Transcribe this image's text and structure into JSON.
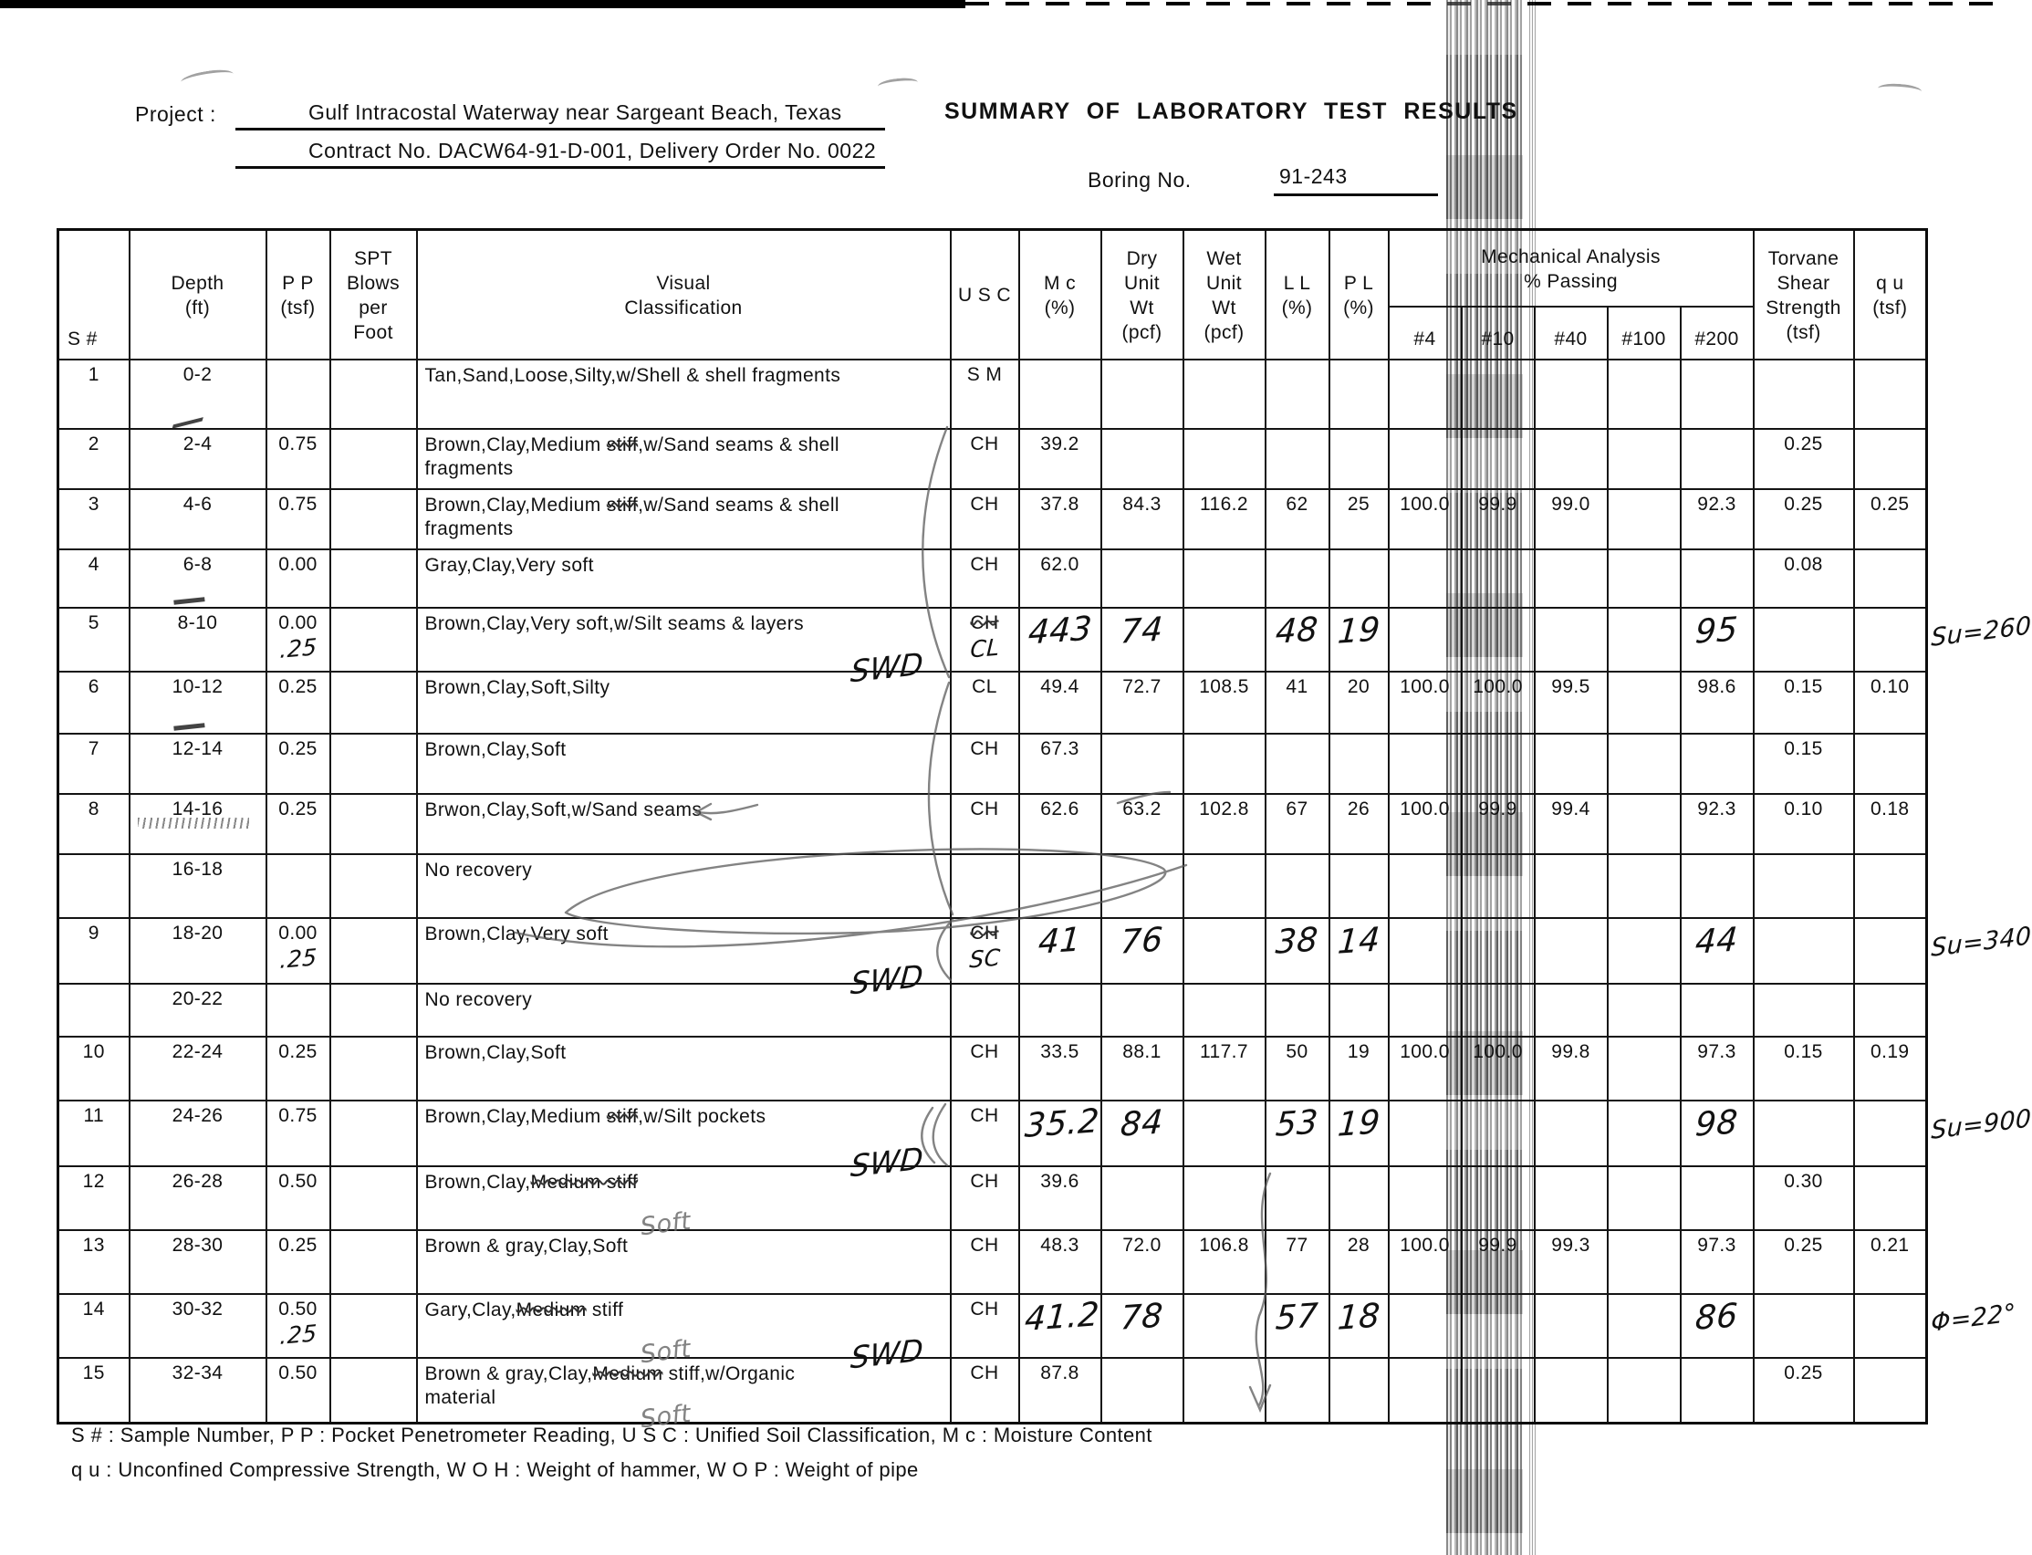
{
  "header": {
    "project_label": "Project :",
    "project_line1": "Gulf Intracostal Waterway near Sargeant Beach, Texas",
    "project_line2": "Contract No. DACW64-91-D-001, Delivery Order No. 0022",
    "title": "SUMMARY OF LABORATORY TEST RESULTS",
    "boring_label": "Boring No.",
    "boring_value": "91-243"
  },
  "table": {
    "headers": {
      "s": "S #",
      "depth_1": "Depth",
      "depth_2": "(ft)",
      "pp_1": "P P",
      "pp_2": "(tsf)",
      "spt_1": "SPT",
      "spt_2": "Blows",
      "spt_3": "per",
      "spt_4": "Foot",
      "visual_1": "Visual",
      "visual_2": "Classification",
      "usc": "U S C",
      "mc_1": "M c",
      "mc_2": "(%)",
      "dry_1": "Dry",
      "dry_2": "Unit",
      "dry_3": "Wt",
      "dry_4": "(pcf)",
      "wet_1": "Wet",
      "wet_2": "Unit",
      "wet_3": "Wt",
      "wet_4": "(pcf)",
      "ll_1": "L L",
      "ll_2": "(%)",
      "pl_1": "P L",
      "pl_2": "(%)",
      "mech_1": "Mechanical Analysis",
      "mech_2": "% Passing",
      "sieves": [
        "#4",
        "#10",
        "#40",
        "#100",
        "#200"
      ],
      "torvane_1": "Torvane",
      "torvane_2": "Shear",
      "torvane_3": "Strength",
      "torvane_4": "(tsf)",
      "qu_1": "q u",
      "qu_2": "(tsf)"
    },
    "rows": [
      {
        "s": "1",
        "depth": "0-2",
        "pp": "",
        "pp_hw": "",
        "spt": "",
        "visual": [
          [
            "Tan,Sand,Loose,Silty,w/Shell  &  shell  fragments",
            0
          ]
        ],
        "line2": "",
        "hw_note": "",
        "hw_note2": "",
        "usc": "S M",
        "usc_struck": false,
        "usc_hw": "",
        "mc": "",
        "dry": "",
        "wet": "",
        "ll": "",
        "pl": "",
        "p4": "",
        "p10": "",
        "p40": "",
        "p100": "",
        "p200": "",
        "torvane": "",
        "qu": "",
        "margin": "",
        "hand": false,
        "h": 76,
        "depth_mark": "arrow"
      },
      {
        "s": "2",
        "depth": "2-4",
        "pp": "0.75",
        "pp_hw": "",
        "spt": "",
        "visual": [
          [
            "Brown,Clay,Medium ",
            0
          ],
          [
            "stiff",
            1
          ],
          [
            ",w/Sand  seams  &  shell",
            0
          ]
        ],
        "line2": "fragments",
        "hw_note": "",
        "hw_note2": "",
        "usc": "CH",
        "usc_struck": false,
        "usc_hw": "",
        "mc": "39.2",
        "dry": "",
        "wet": "",
        "ll": "",
        "pl": "",
        "p4": "",
        "p10": "",
        "p40": "",
        "p100": "",
        "p200": "",
        "torvane": "0.25",
        "qu": "",
        "margin": "",
        "hand": false,
        "h": 66
      },
      {
        "s": "3",
        "depth": "4-6",
        "pp": "0.75",
        "pp_hw": "",
        "spt": "",
        "visual": [
          [
            "Brown,Clay,Medium ",
            0
          ],
          [
            "stiff",
            1
          ],
          [
            ",w/Sand  seams  &  shell",
            0
          ]
        ],
        "line2": "fragments",
        "hw_note": "",
        "hw_note2": "",
        "usc": "CH",
        "usc_struck": false,
        "usc_hw": "",
        "mc": "37.8",
        "dry": "84.3",
        "wet": "116.2",
        "ll": "62",
        "pl": "25",
        "p4": "100.0",
        "p10": "99.9",
        "p40": "99.0",
        "p100": "",
        "p200": "92.3",
        "torvane": "0.25",
        "qu": "0.25",
        "margin": "",
        "hand": false,
        "h": 66
      },
      {
        "s": "4",
        "depth": "6-8",
        "pp": "0.00",
        "pp_hw": "",
        "spt": "",
        "visual": [
          [
            "Gray,Clay,Very  soft",
            0
          ]
        ],
        "line2": "",
        "hw_note": "",
        "hw_note2": "",
        "usc": "CH",
        "usc_struck": false,
        "usc_hw": "",
        "mc": "62.0",
        "dry": "",
        "wet": "",
        "ll": "",
        "pl": "",
        "p4": "",
        "p10": "",
        "p40": "",
        "p100": "",
        "p200": "",
        "torvane": "0.08",
        "qu": "",
        "margin": "",
        "hand": false,
        "h": 64,
        "depth_mark": "dash"
      },
      {
        "s": "5",
        "depth": "8-10",
        "pp": "0.00",
        "pp_hw": ".25",
        "spt": "",
        "visual": [
          [
            "Brown,Clay,Very  soft,w/Silt  seams  &  layers",
            0
          ]
        ],
        "line2": "",
        "hw_note": "SWD",
        "hw_note2": "",
        "usc": "CH",
        "usc_struck": true,
        "usc_hw": "CL",
        "mc": "443",
        "dry": "74",
        "wet": "",
        "ll": "48",
        "pl": "19",
        "p4": "",
        "p10": "",
        "p40": "",
        "p100": "",
        "p200": "95",
        "torvane": "",
        "qu": "",
        "margin": "Su=260",
        "hand": true,
        "h": 70
      },
      {
        "s": "6",
        "depth": "10-12",
        "pp": "0.25",
        "pp_hw": "",
        "spt": "",
        "visual": [
          [
            "Brown,Clay,Soft,Silty",
            0
          ]
        ],
        "line2": "",
        "hw_note": "",
        "hw_note2": "",
        "usc": "CL",
        "usc_struck": false,
        "usc_hw": "",
        "mc": "49.4",
        "dry": "72.7",
        "wet": "108.5",
        "ll": "41",
        "pl": "20",
        "p4": "100.0",
        "p10": "100.0",
        "p40": "99.5",
        "p100": "",
        "p200": "98.6",
        "torvane": "0.15",
        "qu": "0.10",
        "margin": "",
        "hand": false,
        "h": 68,
        "depth_mark": "dash"
      },
      {
        "s": "7",
        "depth": "12-14",
        "pp": "0.25",
        "pp_hw": "",
        "spt": "",
        "visual": [
          [
            "Brown,Clay,Soft",
            0
          ]
        ],
        "line2": "",
        "hw_note": "",
        "hw_note2": "",
        "usc": "CH",
        "usc_struck": false,
        "usc_hw": "",
        "mc": "67.3",
        "dry": "",
        "wet": "",
        "ll": "",
        "pl": "",
        "p4": "",
        "p10": "",
        "p40": "",
        "p100": "",
        "p200": "",
        "torvane": "0.15",
        "qu": "",
        "margin": "",
        "hand": false,
        "h": 66
      },
      {
        "s": "8",
        "depth": "14-16",
        "pp": "0.25",
        "pp_hw": "",
        "spt": "",
        "visual": [
          [
            "Brwon,Clay,Soft,w/Sand  seams",
            0
          ]
        ],
        "line2": "",
        "hw_note": "",
        "hw_note2": "",
        "usc": "CH",
        "usc_struck": false,
        "usc_hw": "",
        "mc": "62.6",
        "dry": "63.2",
        "wet": "102.8",
        "ll": "67",
        "pl": "26",
        "p4": "100.0",
        "p10": "99.9",
        "p40": "99.4",
        "p100": "",
        "p200": "92.3",
        "torvane": "0.10",
        "qu": "0.18",
        "margin": "",
        "hand": false,
        "h": 66,
        "depth_mark": "scribble"
      },
      {
        "s": "",
        "depth": "16-18",
        "pp": "",
        "pp_hw": "",
        "spt": "",
        "visual": [
          [
            "No  recovery",
            0
          ]
        ],
        "line2": "",
        "hw_note": "",
        "hw_note2": "",
        "usc": "",
        "usc_struck": false,
        "usc_hw": "",
        "mc": "",
        "dry": "",
        "wet": "",
        "ll": "",
        "pl": "",
        "p4": "",
        "p10": "",
        "p40": "",
        "p100": "",
        "p200": "",
        "torvane": "",
        "qu": "",
        "margin": "",
        "hand": false,
        "h": 70
      },
      {
        "s": "9",
        "depth": "18-20",
        "pp": "0.00",
        "pp_hw": ".25",
        "spt": "",
        "visual": [
          [
            "Brown,Clay,Very  soft",
            0
          ]
        ],
        "line2": "",
        "hw_note": "SWD",
        "hw_note2": "",
        "usc": "CH",
        "usc_struck": true,
        "usc_hw": "SC",
        "mc": "41",
        "dry": "76",
        "wet": "",
        "ll": "38",
        "pl": "14",
        "p4": "",
        "p10": "",
        "p40": "",
        "p100": "",
        "p200": "44",
        "torvane": "",
        "qu": "",
        "margin": "Su=340",
        "hand": true,
        "h": 72
      },
      {
        "s": "",
        "depth": "20-22",
        "pp": "",
        "pp_hw": "",
        "spt": "",
        "visual": [
          [
            "No  recovery",
            0
          ]
        ],
        "line2": "",
        "hw_note": "",
        "hw_note2": "",
        "usc": "",
        "usc_struck": false,
        "usc_hw": "",
        "mc": "",
        "dry": "",
        "wet": "",
        "ll": "",
        "pl": "",
        "p4": "",
        "p10": "",
        "p40": "",
        "p100": "",
        "p200": "",
        "torvane": "",
        "qu": "",
        "margin": "",
        "hand": false,
        "h": 58
      },
      {
        "s": "10",
        "depth": "22-24",
        "pp": "0.25",
        "pp_hw": "",
        "spt": "",
        "visual": [
          [
            "Brown,Clay,Soft",
            0
          ]
        ],
        "line2": "",
        "hw_note": "",
        "hw_note2": "",
        "usc": "CH",
        "usc_struck": false,
        "usc_hw": "",
        "mc": "33.5",
        "dry": "88.1",
        "wet": "117.7",
        "ll": "50",
        "pl": "19",
        "p4": "100.0",
        "p10": "100.0",
        "p40": "99.8",
        "p100": "",
        "p200": "97.3",
        "torvane": "0.15",
        "qu": "0.19",
        "margin": "",
        "hand": false,
        "h": 70
      },
      {
        "s": "11",
        "depth": "24-26",
        "pp": "0.75",
        "pp_hw": "",
        "spt": "",
        "visual": [
          [
            "Brown,Clay,Medium ",
            0
          ],
          [
            "stiff",
            1
          ],
          [
            ",w/Silt  pockets",
            0
          ]
        ],
        "line2": "",
        "hw_note": "SWD",
        "hw_note2": "",
        "usc": "CH",
        "usc_struck": false,
        "usc_hw": "",
        "mc": "35.2",
        "dry": "84",
        "wet": "",
        "ll": "53",
        "pl": "19",
        "p4": "",
        "p10": "",
        "p40": "",
        "p100": "",
        "p200": "98",
        "torvane": "",
        "qu": "",
        "margin": "Su=900",
        "hand": true,
        "h": 72
      },
      {
        "s": "12",
        "depth": "26-28",
        "pp": "0.50",
        "pp_hw": "",
        "spt": "",
        "visual": [
          [
            "Brown,Clay,",
            0
          ],
          [
            "Medium stiff",
            1
          ]
        ],
        "line2": "",
        "hw_note": "",
        "hw_note2": "Soft",
        "usc": "CH",
        "usc_struck": false,
        "usc_hw": "",
        "mc": "39.6",
        "dry": "",
        "wet": "",
        "ll": "",
        "pl": "",
        "p4": "",
        "p10": "",
        "p40": "",
        "p100": "",
        "p200": "",
        "torvane": "0.30",
        "qu": "",
        "margin": "",
        "hand": false,
        "h": 70
      },
      {
        "s": "13",
        "depth": "28-30",
        "pp": "0.25",
        "pp_hw": "",
        "spt": "",
        "visual": [
          [
            "Brown  &  gray,Clay,Soft",
            0
          ]
        ],
        "line2": "",
        "hw_note": "",
        "hw_note2": "",
        "usc": "CH",
        "usc_struck": false,
        "usc_hw": "",
        "mc": "48.3",
        "dry": "72.0",
        "wet": "106.8",
        "ll": "77",
        "pl": "28",
        "p4": "100.0",
        "p10": "99.9",
        "p40": "99.3",
        "p100": "",
        "p200": "97.3",
        "torvane": "0.25",
        "qu": "0.21",
        "margin": "",
        "hand": false,
        "h": 70
      },
      {
        "s": "14",
        "depth": "30-32",
        "pp": "0.50",
        "pp_hw": ".25",
        "spt": "",
        "visual": [
          [
            "Gary,Clay,",
            0
          ],
          [
            "Medium",
            1
          ],
          [
            " stiff",
            0
          ]
        ],
        "line2": "",
        "hw_note": "SWD",
        "hw_note2": "Soft",
        "usc": "CH",
        "usc_struck": false,
        "usc_hw": "",
        "mc": "41.2",
        "dry": "78",
        "wet": "",
        "ll": "57",
        "pl": "18",
        "p4": "",
        "p10": "",
        "p40": "",
        "p100": "",
        "p200": "86",
        "torvane": "",
        "qu": "",
        "margin": "Φ=22°",
        "hand": true,
        "h": 70
      },
      {
        "s": "15",
        "depth": "32-34",
        "pp": "0.50",
        "pp_hw": "",
        "spt": "",
        "visual": [
          [
            "Brown  &  gray,Clay,",
            0
          ],
          [
            "Medium",
            1
          ],
          [
            " stiff,w/Organic",
            0
          ]
        ],
        "line2": "material",
        "hw_note": "",
        "hw_note2": "Soft",
        "usc": "CH",
        "usc_struck": false,
        "usc_hw": "",
        "mc": "87.8",
        "dry": "",
        "wet": "",
        "ll": "",
        "pl": "",
        "p4": "",
        "p10": "",
        "p40": "",
        "p100": "",
        "p200": "",
        "torvane": "0.25",
        "qu": "",
        "margin": "",
        "hand": false,
        "h": 72
      }
    ]
  },
  "footnotes": [
    "S # : Sample Number, P P : Pocket Penetrometer Reading, U S C : Unified Soil Classification, M c : Moisture Content",
    "q u : Unconfined Compressive Strength, W O H : Weight of hammer, W O P : Weight of pipe"
  ]
}
